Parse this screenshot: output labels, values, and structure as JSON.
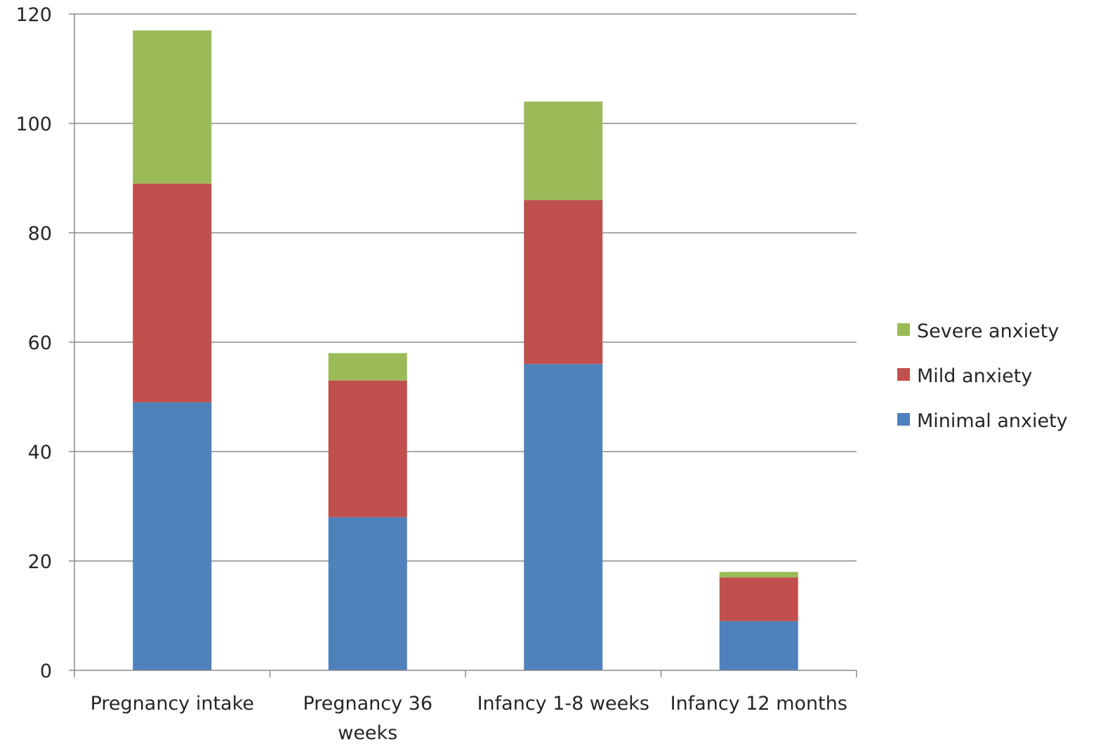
{
  "chart_data": {
    "type": "bar",
    "stacked": true,
    "title": "",
    "xlabel": "",
    "ylabel": "",
    "ylim": [
      0,
      120
    ],
    "yticks": [
      0,
      20,
      40,
      60,
      80,
      100,
      120
    ],
    "grid": true,
    "legend_position": "right",
    "categories": [
      [
        "Pregnancy intake"
      ],
      [
        "Pregnancy 36",
        "weeks"
      ],
      [
        "Infancy 1-8 weeks"
      ],
      [
        "Infancy 12 months"
      ]
    ],
    "series": [
      {
        "name": "Minimal anxiety",
        "color": "#4F81BD",
        "values": [
          49,
          28,
          56,
          9
        ]
      },
      {
        "name": "Mild anxiety",
        "color": "#C0504D",
        "values": [
          40,
          25,
          30,
          8
        ]
      },
      {
        "name": "Severe anxiety",
        "color": "#9BBB59",
        "values": [
          28,
          5,
          18,
          1
        ]
      }
    ],
    "legend_order": [
      "Severe anxiety",
      "Mild anxiety",
      "Minimal anxiety"
    ]
  }
}
